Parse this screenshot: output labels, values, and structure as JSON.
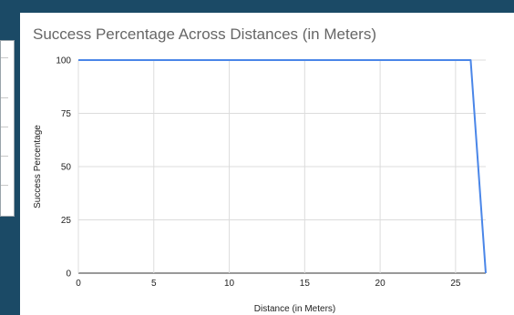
{
  "chart_data": {
    "type": "line",
    "title": "Success Percentage Across Distances (in Meters)",
    "xlabel": "Distance (in Meters)",
    "ylabel": "Success Percentage",
    "xlim": [
      0,
      27
    ],
    "ylim": [
      0,
      100
    ],
    "x_ticks": [
      0,
      5,
      10,
      15,
      20,
      25
    ],
    "y_ticks": [
      0,
      25,
      50,
      75,
      100
    ],
    "grid": true,
    "line_color": "#4a86e8",
    "series": [
      {
        "x": [
          0,
          1,
          2,
          3,
          4,
          5,
          6,
          7,
          8,
          9,
          10,
          11,
          12,
          13,
          14,
          15,
          16,
          17,
          18,
          19,
          20,
          21,
          22,
          23,
          24,
          25,
          26,
          27
        ],
        "values": [
          100,
          100,
          100,
          100,
          100,
          100,
          100,
          100,
          100,
          100,
          100,
          100,
          100,
          100,
          100,
          100,
          100,
          100,
          100,
          100,
          100,
          100,
          100,
          100,
          100,
          100,
          100,
          0
        ]
      }
    ]
  }
}
